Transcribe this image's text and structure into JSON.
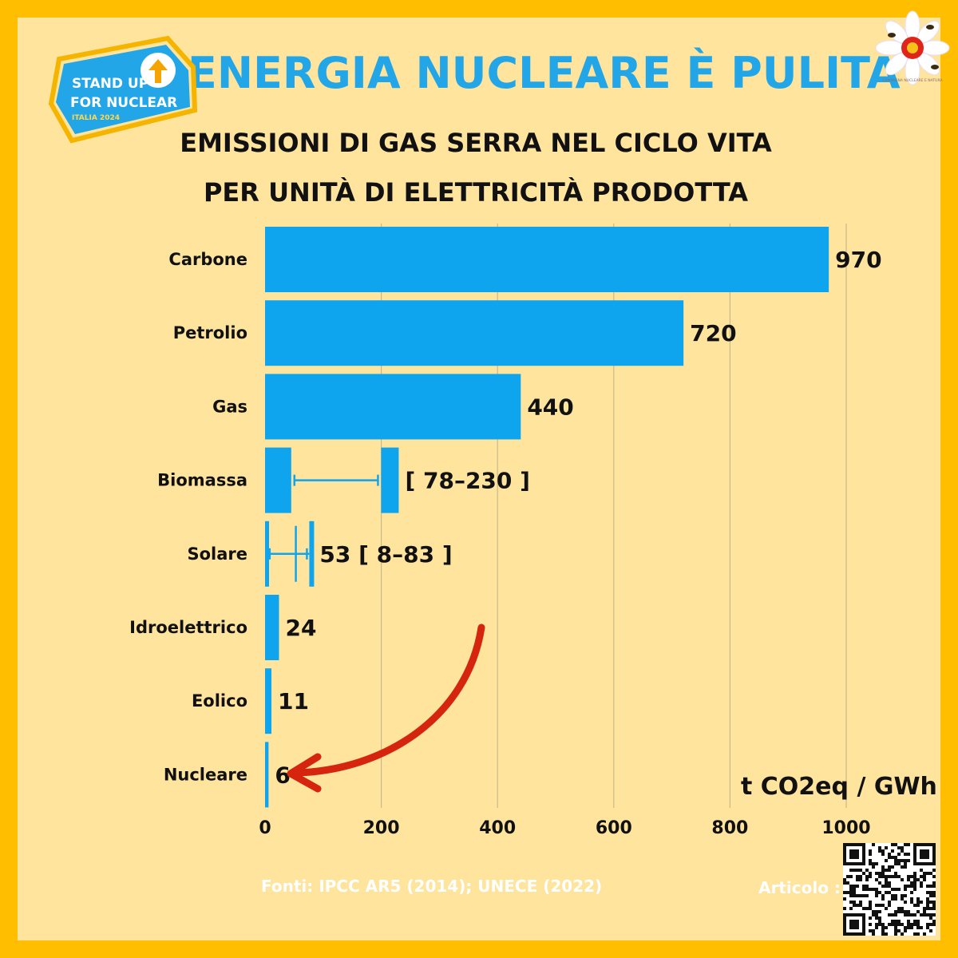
{
  "header": {
    "title": "L’ENERGIA NUCLEARE È PULITA",
    "subtitle_line1": "EMISSIONI DI GAS SERRA NEL CICLO VITA",
    "subtitle_line2": "PER UNITÀ DI ELETTRICITÀ PRODOTTA"
  },
  "logo": {
    "line1": "STAND UP",
    "line2": "FOR NUCLEAR",
    "line3": "ITALIA 2024"
  },
  "badge": {
    "text": "CAMPAGNA NUCLEARE E NATURA"
  },
  "colors": {
    "bar": "#0ea5ee",
    "frame": "#ffbf00",
    "background": "#ffe49e",
    "title": "#22a6e8",
    "arrow": "#d5250f"
  },
  "chart_data": {
    "type": "bar",
    "orientation": "horizontal",
    "categories": [
      "Carbone",
      "Petrolio",
      "Gas",
      "Biomassa",
      "Solare",
      "Idroelettrico",
      "Eolico",
      "Nucleare"
    ],
    "values": [
      970,
      720,
      440,
      null,
      53,
      24,
      11,
      6
    ],
    "value_labels": [
      "970",
      "720",
      "440",
      "[ 78–230 ]",
      "53  [ 8–83 ]",
      "24",
      "11",
      "6"
    ],
    "ranges": {
      "Biomassa": [
        78,
        230
      ],
      "Solare": [
        8,
        83
      ]
    },
    "xlim": [
      0,
      1000
    ],
    "xticks": [
      0,
      200,
      400,
      600,
      800,
      1000
    ],
    "xunit": "t CO2eq / GWh",
    "grid": true
  },
  "footer": {
    "sources": "Fonti: IPCC AR5 (2014); UNECE (2022)",
    "article_label": "Articolo :"
  }
}
